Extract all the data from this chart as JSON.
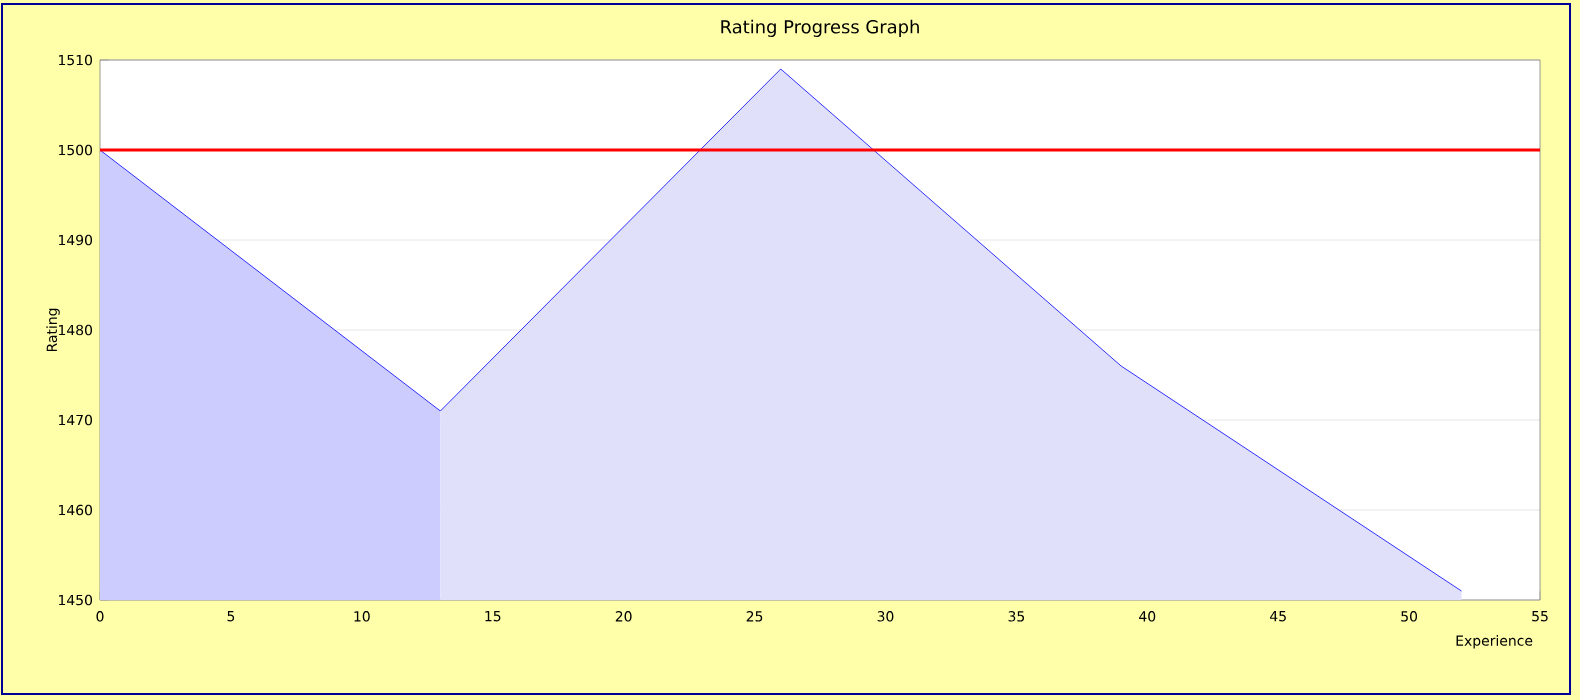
{
  "chart_data": {
    "type": "area",
    "title": "Rating Progress Graph",
    "xlabel": "Experience",
    "ylabel": "Rating",
    "xlim": [
      0,
      55
    ],
    "ylim": [
      1450,
      1510
    ],
    "xticks": [
      0,
      5,
      10,
      15,
      20,
      25,
      30,
      35,
      40,
      45,
      50,
      55
    ],
    "yticks": [
      1450,
      1460,
      1470,
      1480,
      1490,
      1500,
      1510
    ],
    "grid": "y",
    "series": [
      {
        "color": "#ccccff",
        "x": [
          0,
          13
        ],
        "values": [
          1500,
          1471
        ]
      },
      {
        "color": "#e0e0fa",
        "x": [
          13,
          26,
          39,
          52
        ],
        "values": [
          1471,
          1509,
          1476,
          1451
        ]
      }
    ],
    "ref_lines": [
      {
        "axis": "y",
        "value": 1500,
        "color": "#ff0000"
      }
    ]
  }
}
